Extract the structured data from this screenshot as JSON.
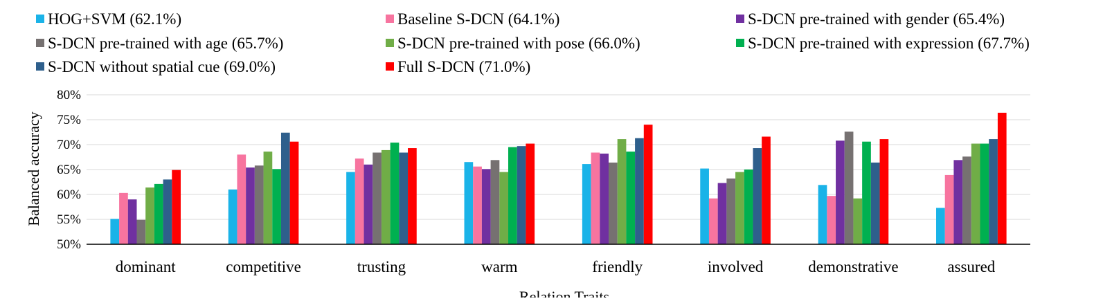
{
  "chart_data": {
    "type": "bar",
    "xlabel": "Relation Traits",
    "ylabel": "Balanced accuracy",
    "ylim": [
      50,
      80
    ],
    "y_ticks": [
      "50%",
      "55%",
      "60%",
      "65%",
      "70%",
      "75%",
      "80%"
    ],
    "y_tick_values": [
      50,
      55,
      60,
      65,
      70,
      75,
      80
    ],
    "grid": true,
    "legend_position": "top",
    "categories": [
      "dominant",
      "competitive",
      "trusting",
      "warm",
      "friendly",
      "involved",
      "demonstrative",
      "assured"
    ],
    "series": [
      {
        "name": "HOG+SVM (62.1%)",
        "color": "#1AB3E8",
        "values": [
          55.1,
          61.0,
          64.5,
          66.5,
          66.1,
          65.2,
          61.9,
          57.3
        ]
      },
      {
        "name": "Baseline S-DCN (64.1%)",
        "color": "#F7749F",
        "values": [
          60.3,
          68.0,
          67.2,
          65.6,
          68.4,
          59.2,
          59.7,
          63.9
        ]
      },
      {
        "name": "S-DCN pre-trained with gender (65.4%)",
        "color": "#7030A0",
        "values": [
          59.0,
          65.4,
          66.0,
          65.1,
          68.2,
          62.3,
          70.8,
          66.9
        ]
      },
      {
        "name": "S-DCN pre-trained with age (65.7%)",
        "color": "#767171",
        "values": [
          54.9,
          65.8,
          68.4,
          66.9,
          66.4,
          63.2,
          72.6,
          67.6
        ]
      },
      {
        "name": "S-DCN pre-trained with pose (66.0%)",
        "color": "#70AD47",
        "values": [
          61.4,
          68.6,
          68.9,
          64.5,
          71.1,
          64.5,
          59.2,
          70.2
        ]
      },
      {
        "name": "S-DCN pre-trained with expression (67.7%)",
        "color": "#00B050",
        "values": [
          62.1,
          65.1,
          70.4,
          69.5,
          68.6,
          65.0,
          70.6,
          70.2
        ]
      },
      {
        "name": "S-DCN without spatial cue (69.0%)",
        "color": "#2E5F8C",
        "values": [
          63.0,
          72.4,
          68.4,
          69.7,
          71.3,
          69.3,
          66.4,
          71.1
        ]
      },
      {
        "name": "Full S-DCN (71.0%)",
        "color": "#FF0000",
        "values": [
          64.9,
          70.6,
          69.3,
          70.2,
          74.0,
          71.6,
          71.1,
          76.4
        ]
      }
    ]
  }
}
